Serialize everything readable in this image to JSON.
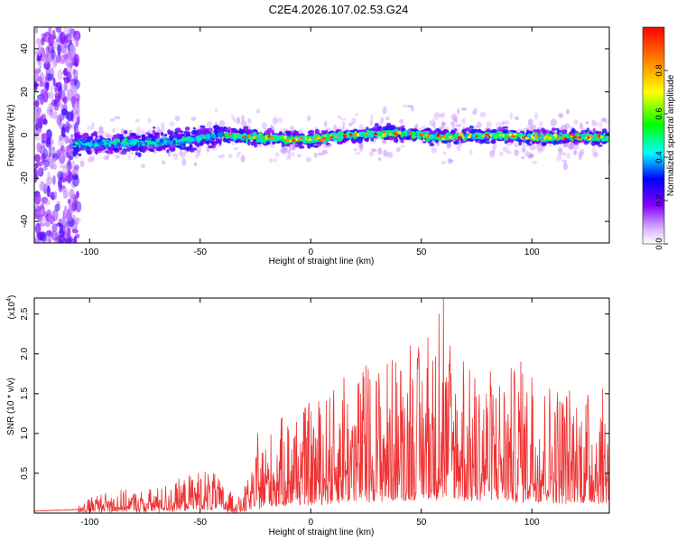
{
  "title": "C2E4.2026.107.02.53.G24",
  "chart_data": [
    {
      "type": "heatmap",
      "xlabel": "Height of straight line (km)",
      "ylabel": "Frequency (Hz)",
      "xlim": [
        -125,
        135
      ],
      "ylim": [
        -50,
        50
      ],
      "xticks": [
        -100,
        -50,
        0,
        50,
        100
      ],
      "yticks": [
        -40,
        -20,
        0,
        20,
        40
      ],
      "colorbar": {
        "label": "Normalized spectral amplitude",
        "range": [
          0,
          1
        ],
        "ticks": [
          0.0,
          0.2,
          0.4,
          0.6,
          0.8
        ],
        "colors": [
          "#ffffff",
          "#d9b3ff",
          "#8000ff",
          "#0000ff",
          "#00ffff",
          "#00ff00",
          "#ffff00",
          "#ff0000"
        ]
      },
      "ridge": {
        "start_km": -107,
        "centerline": [
          [
            -107,
            -4
          ],
          [
            -90,
            -4
          ],
          [
            -60,
            -3
          ],
          [
            -47,
            -1
          ],
          [
            -40,
            0
          ],
          [
            -25,
            -1
          ],
          [
            -10,
            -2
          ],
          [
            0,
            -2
          ],
          [
            20,
            0
          ],
          [
            40,
            1
          ],
          [
            50,
            0
          ],
          [
            60,
            -1
          ],
          [
            80,
            0
          ],
          [
            100,
            -1
          ],
          [
            135,
            -1
          ]
        ]
      }
    },
    {
      "type": "line",
      "xlabel": "Height of straight line (km)",
      "ylabel": "SNR (10 * v/v)",
      "yscale_label": "(x10",
      "yscale_exponent": "4",
      "xlim": [
        -125,
        135
      ],
      "ylim": [
        0,
        2.7
      ],
      "xticks": [
        -100,
        -50,
        0,
        50,
        100
      ],
      "yticks": [
        0.5,
        1.0,
        1.5,
        2.0,
        2.5
      ],
      "color": "#ee3333",
      "envelope": [
        [
          -125,
          0.02
        ],
        [
          -105,
          0.04
        ],
        [
          -100,
          0.12
        ],
        [
          -90,
          0.15
        ],
        [
          -75,
          0.15
        ],
        [
          -60,
          0.22
        ],
        [
          -50,
          0.3
        ],
        [
          -45,
          0.3
        ],
        [
          -40,
          0.2
        ],
        [
          -32,
          0.1
        ],
        [
          -28,
          0.25
        ],
        [
          -22,
          0.5
        ],
        [
          -10,
          0.7
        ],
        [
          0,
          0.75
        ],
        [
          10,
          0.85
        ],
        [
          20,
          0.95
        ],
        [
          30,
          1.05
        ],
        [
          40,
          1.1
        ],
        [
          50,
          1.15
        ],
        [
          60,
          1.2
        ],
        [
          70,
          1.0
        ],
        [
          80,
          1.0
        ],
        [
          90,
          1.0
        ],
        [
          100,
          0.95
        ],
        [
          115,
          0.9
        ],
        [
          125,
          0.85
        ],
        [
          135,
          0.85
        ]
      ],
      "peaks": [
        [
          58,
          2.5
        ],
        [
          60,
          2.7
        ],
        [
          53,
          2.2
        ],
        [
          45,
          2.1
        ],
        [
          63,
          2.1
        ],
        [
          25,
          1.85
        ],
        [
          69,
          1.9
        ],
        [
          95,
          1.9
        ],
        [
          100,
          1.7
        ],
        [
          15,
          1.7
        ],
        [
          -24,
          1.0
        ]
      ]
    }
  ]
}
